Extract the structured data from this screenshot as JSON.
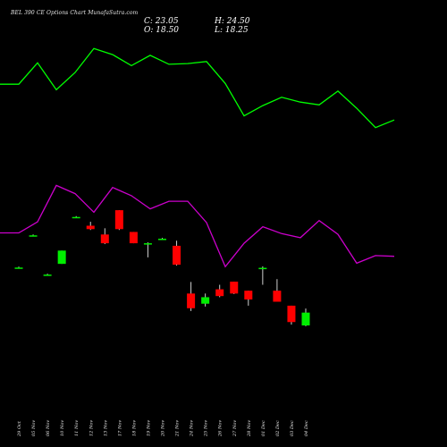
{
  "header": {
    "title": "BEL 390 CE Options Chart MunafaSutra.com",
    "close": "C: 23.05",
    "high": "H: 24.50",
    "open": "O: 18.50",
    "low": "L: 18.25"
  },
  "colors": {
    "background": "#000000",
    "up": "#00ee00",
    "down": "#ff0000",
    "line_green": "#00ff00",
    "line_magenta": "#cc00cc"
  },
  "chart_data": {
    "type": "candlestick",
    "dates": [
      "29 Oct",
      "05 Nov",
      "06 Nov",
      "10 Nov",
      "11 Nov",
      "12 Nov",
      "13 Nov",
      "17 Nov",
      "18 Nov",
      "19 Nov",
      "20 Nov",
      "21 Nov",
      "24 Nov",
      "25 Nov",
      "26 Nov",
      "27 Nov",
      "28 Nov",
      "01 Dec",
      "02 Dec",
      "03 Dec",
      "04 Dec"
    ],
    "candles": [
      {
        "o": 39.0,
        "h": 39.3,
        "l": 38.7,
        "c": 39.0
      },
      {
        "o": 50.4,
        "h": 50.7,
        "l": 50.1,
        "c": 50.4
      },
      {
        "o": 36.5,
        "h": 36.8,
        "l": 36.2,
        "c": 36.5
      },
      {
        "o": 40.3,
        "h": 45.0,
        "l": 40.3,
        "c": 45.0
      },
      {
        "o": 56.9,
        "h": 57.2,
        "l": 56.6,
        "c": 56.9
      },
      {
        "o": 53.8,
        "h": 55.2,
        "l": 52.3,
        "c": 52.6
      },
      {
        "o": 50.7,
        "h": 52.9,
        "l": 47.3,
        "c": 47.6
      },
      {
        "o": 59.3,
        "h": 59.3,
        "l": 52.3,
        "c": 52.6
      },
      {
        "o": 51.6,
        "h": 51.6,
        "l": 47.6,
        "c": 47.6
      },
      {
        "o": 47.6,
        "h": 47.9,
        "l": 42.6,
        "c": 47.6
      },
      {
        "o": 49.2,
        "h": 49.5,
        "l": 48.9,
        "c": 49.2
      },
      {
        "o": 46.7,
        "h": 48.5,
        "l": 39.7,
        "c": 40.0
      },
      {
        "o": 29.8,
        "h": 33.9,
        "l": 23.6,
        "c": 24.6
      },
      {
        "o": 26.2,
        "h": 29.8,
        "l": 25.2,
        "c": 28.5
      },
      {
        "o": 31.3,
        "h": 32.9,
        "l": 28.5,
        "c": 28.9
      },
      {
        "o": 34.0,
        "h": 34.0,
        "l": 29.6,
        "c": 29.8
      },
      {
        "o": 30.8,
        "h": 30.8,
        "l": 25.5,
        "c": 27.7
      },
      {
        "o": 38.6,
        "h": 39.4,
        "l": 32.9,
        "c": 38.9
      },
      {
        "o": 30.8,
        "h": 34.9,
        "l": 26.9,
        "c": 26.9
      },
      {
        "o": 25.5,
        "h": 25.5,
        "l": 18.8,
        "c": 19.7
      },
      {
        "o": 18.5,
        "h": 24.5,
        "l": 18.25,
        "c": 23.05
      }
    ],
    "green_line": [
      54.0,
      54.0,
      57.1,
      53.2,
      55.7,
      59.2,
      58.3,
      56.7,
      58.2,
      56.9,
      57.0,
      57.3,
      54.1,
      49.4,
      50.9,
      52.1,
      51.4,
      51.0,
      53.0,
      50.5,
      47.7,
      48.8
    ],
    "magenta_line": [
      32.4,
      32.4,
      34.0,
      39.3,
      38.1,
      35.4,
      39.0,
      37.8,
      35.9,
      37.0,
      37.0,
      33.9,
      27.5,
      30.9,
      33.3,
      32.3,
      31.7,
      34.2,
      32.2,
      28.0,
      29.1,
      29.0
    ],
    "title": "",
    "xlabel": "",
    "ylabel": ""
  }
}
